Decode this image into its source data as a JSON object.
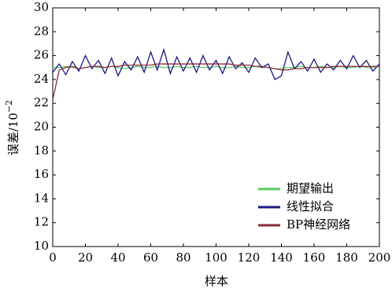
{
  "chart_data": {
    "type": "line",
    "xlabel": "样本",
    "ylabel": "误差/10",
    "ylabel_exponent": "−2",
    "x": [
      0,
      4,
      8,
      12,
      16,
      20,
      24,
      28,
      32,
      36,
      40,
      44,
      48,
      52,
      56,
      60,
      64,
      68,
      72,
      76,
      80,
      84,
      88,
      92,
      96,
      100,
      104,
      108,
      112,
      116,
      120,
      124,
      128,
      132,
      136,
      140,
      144,
      148,
      152,
      156,
      160,
      164,
      168,
      172,
      176,
      180,
      184,
      188,
      192,
      196,
      200
    ],
    "series": [
      {
        "name": "期望输出",
        "color": "#5ec962",
        "values": [
          25.0,
          25.0,
          25.1,
          25.0,
          24.9,
          25.0,
          25.1,
          25.0,
          25.0,
          25.1,
          25.0,
          24.9,
          25.0,
          25.1,
          25.0,
          25.0,
          25.1,
          25.0,
          25.0,
          25.1,
          25.0,
          25.0,
          25.1,
          25.0,
          25.0,
          25.1,
          25.0,
          25.0,
          25.1,
          25.0,
          25.0,
          25.1,
          25.0,
          25.0,
          24.9,
          24.9,
          25.0,
          25.0,
          25.1,
          25.0,
          25.0,
          25.1,
          25.0,
          25.0,
          25.1,
          25.0,
          25.0,
          25.1,
          25.0,
          25.0,
          25.1
        ]
      },
      {
        "name": "线性拟合",
        "color": "#1a1a80",
        "values": [
          24.6,
          25.3,
          24.4,
          25.5,
          24.7,
          26.0,
          24.9,
          25.6,
          24.5,
          25.8,
          24.3,
          25.5,
          24.8,
          25.9,
          24.6,
          26.3,
          24.8,
          26.5,
          24.5,
          25.9,
          24.7,
          25.8,
          24.6,
          26.0,
          24.8,
          25.6,
          24.5,
          25.9,
          24.9,
          25.4,
          24.6,
          25.8,
          25.0,
          25.3,
          24.0,
          24.3,
          26.3,
          24.9,
          25.5,
          24.7,
          25.7,
          24.6,
          25.3,
          24.8,
          25.6,
          24.9,
          26.0,
          25.0,
          25.6,
          24.7,
          25.3
        ]
      },
      {
        "name": "BP神经网络",
        "color": "#8b2a3a",
        "values": [
          22.3,
          24.8,
          25.0,
          25.1,
          24.9,
          25.0,
          25.1,
          25.1,
          25.0,
          25.1,
          25.1,
          25.2,
          25.2,
          25.2,
          25.2,
          25.2,
          25.3,
          25.3,
          25.3,
          25.3,
          25.3,
          25.3,
          25.3,
          25.3,
          25.3,
          25.3,
          25.3,
          25.3,
          25.2,
          25.2,
          25.2,
          25.1,
          25.1,
          25.0,
          24.9,
          24.8,
          24.8,
          24.9,
          24.9,
          25.0,
          25.0,
          25.0,
          25.0,
          25.1,
          25.1,
          25.1,
          25.1,
          25.1,
          25.1,
          25.1,
          25.1
        ]
      }
    ],
    "xlim": [
      0,
      200
    ],
    "xticks": [
      0,
      20,
      40,
      60,
      80,
      100,
      120,
      140,
      160,
      180,
      200
    ],
    "ylim": [
      10,
      30
    ],
    "yticks": [
      10,
      12,
      14,
      16,
      18,
      20,
      22,
      24,
      26,
      28,
      30
    ],
    "legend": "lower right"
  }
}
